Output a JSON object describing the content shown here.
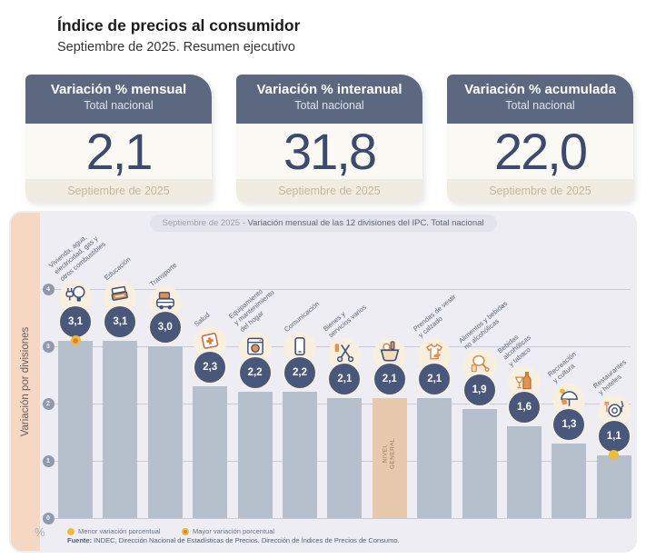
{
  "header": {
    "title": "Índice de precios al consumidor",
    "subtitle": "Septiembre de 2025. Resumen ejecutivo"
  },
  "summary_cards": [
    {
      "label": "Variación % mensual",
      "sublabel": "Total nacional",
      "value": "2,1",
      "period": "Septiembre de 2025"
    },
    {
      "label": "Variación % interanual",
      "sublabel": "Total nacional",
      "value": "31,8",
      "period": "Septiembre de 2025"
    },
    {
      "label": "Variación % acumulada",
      "sublabel": "Total nacional",
      "value": "22,0",
      "period": "Septiembre de 2025"
    }
  ],
  "chart": {
    "title_prefix": "Septiembre de 2025 - ",
    "title_main": "Variación mensual de las 12 divisiones del IPC. Total nacional",
    "axis_label": "Variación por divisiones",
    "unit_symbol": "%",
    "legend": [
      {
        "label": "Menor variación porcentual",
        "marker": "dot-solid",
        "color": "#ecbb3f"
      },
      {
        "label": "Mayor variación porcentual",
        "marker": "dot-ring",
        "color": "#ecbb3f",
        "center_color": "#dd8630"
      }
    ],
    "source_label": "Fuente:",
    "source_text": " INDEC, Dirección Nacional de Estadísticas de Precios. Dirección de Índices de Precios de Consumo."
  },
  "chart_data": {
    "type": "bar",
    "title": "Septiembre de 2025 - Variación mensual de las 12 divisiones del IPC. Total nacional",
    "xlabel": "",
    "ylabel": "Variación por divisiones",
    "unit": "%",
    "ylim": [
      0,
      4
    ],
    "yticks": [
      0,
      1,
      2,
      3,
      4
    ],
    "grid": true,
    "categories": [
      "Vivienda, agua, electricidad, gas y otros combustibles",
      "Educación",
      "Transporte",
      "Salud",
      "Equipamiento y mantenimiento del hogar",
      "Comunicación",
      "Bienes y servicios varios",
      "Nivel general",
      "Prendas de vestir y calzado",
      "Alimentos y bebidas no alcohólicas",
      "Bebidas alcohólicas y tabaco",
      "Recreación y cultura",
      "Restaurantes y hoteles"
    ],
    "values": [
      3.1,
      3.1,
      3.0,
      2.3,
      2.2,
      2.2,
      2.1,
      2.1,
      2.1,
      1.9,
      1.6,
      1.3,
      1.1
    ],
    "divisions": [
      {
        "name": "Vivienda, agua, electricidad, gas y otros combustibles",
        "label_lines": "Vivienda, agua,\nelectricidad, gas y\notros combustibles",
        "value": 3.1,
        "display": "3,1",
        "icon": "lightbulb",
        "marker": "mayor"
      },
      {
        "name": "Educación",
        "label_lines": "Educación",
        "value": 3.1,
        "display": "3,1",
        "icon": "books"
      },
      {
        "name": "Transporte",
        "label_lines": "Transporte",
        "value": 3.0,
        "display": "3,0",
        "icon": "bus"
      },
      {
        "name": "Salud",
        "label_lines": "Salud",
        "value": 2.3,
        "display": "2,3",
        "icon": "first-aid-kit"
      },
      {
        "name": "Equipamiento y mantenimiento del hogar",
        "label_lines": "Equipamiento\ny mantenimiento\ndel hogar",
        "value": 2.2,
        "display": "2,2",
        "icon": "washing-machine"
      },
      {
        "name": "Comunicación",
        "label_lines": "Comunicación",
        "value": 2.2,
        "display": "2,2",
        "icon": "smartphone"
      },
      {
        "name": "Bienes y servicios varios",
        "label_lines": "Bienes y\nservicios varios",
        "value": 2.1,
        "display": "2,1",
        "icon": "scissors"
      },
      {
        "name": "Nivel general",
        "value": 2.1,
        "display": "2,1",
        "icon": "shopping-basket",
        "highlight": true,
        "bar_label": "NIVEL\nGENERAL"
      },
      {
        "name": "Prendas de vestir y calzado",
        "label_lines": "Prendas de vestir\ny calzado",
        "value": 2.1,
        "display": "2,1",
        "icon": "tshirt"
      },
      {
        "name": "Alimentos y bebidas no alcohólicas",
        "label_lines": "Alimentos y bebidas\nno alcohólicas",
        "value": 1.9,
        "display": "1,9",
        "icon": "chicken-leg"
      },
      {
        "name": "Bebidas alcohólicas y tabaco",
        "label_lines": "Bebidas\nalcohólicas\ny tabaco",
        "value": 1.6,
        "display": "1,6",
        "icon": "wine-bottle"
      },
      {
        "name": "Recreación y cultura",
        "label_lines": "Recreación\ny cultura",
        "value": 1.3,
        "display": "1,3",
        "icon": "beach-umbrella"
      },
      {
        "name": "Restaurantes y hoteles",
        "label_lines": "Restaurantes\ny hoteles",
        "value": 1.1,
        "display": "1,1",
        "icon": "plate-cutlery",
        "marker": "menor"
      }
    ],
    "legend_position": "bottom"
  },
  "colors": {
    "card_header": "#5c6880",
    "value_navy": "#3d4a6c",
    "panel_bg": "#ededf3",
    "band_peach": "#f6d8c2",
    "bar_gray": "#b6bfcc",
    "bar_highlight": "#e9c9ae",
    "badge_navy": "#49587a",
    "dot_gold": "#ecbb3f",
    "dot_orange": "#dd8630"
  }
}
